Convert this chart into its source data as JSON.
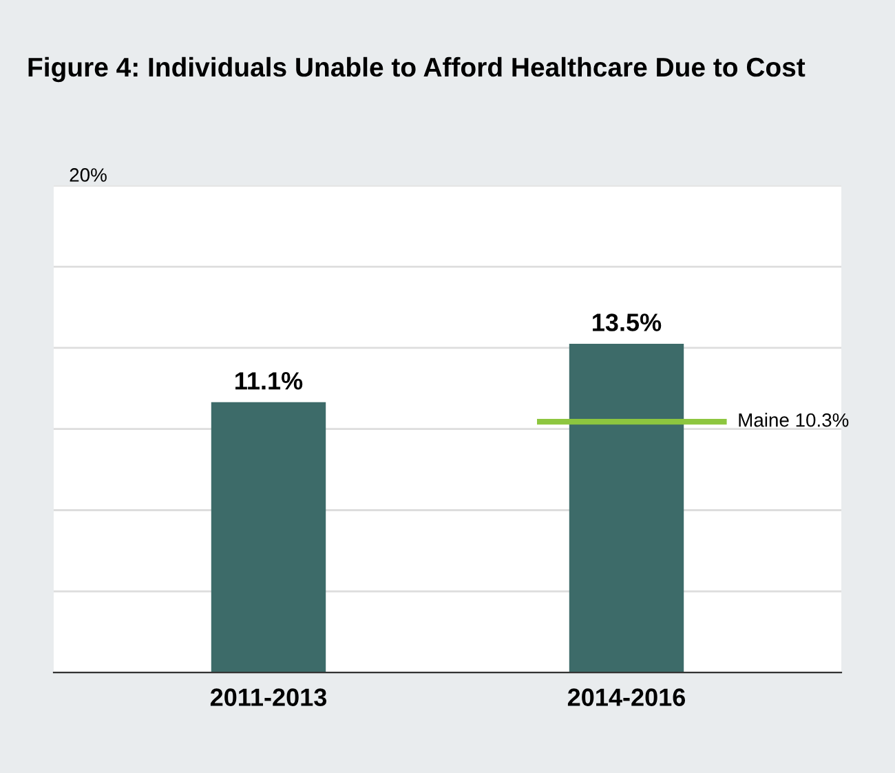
{
  "chart_data": {
    "type": "bar",
    "title": "Figure 4: Individuals Unable to Afford Healthcare Due to Cost",
    "categories": [
      "2011-2013",
      "2014-2016"
    ],
    "values": [
      11.1,
      13.5
    ],
    "value_labels": [
      "11.1%",
      "13.5%"
    ],
    "color": "#3d6b69",
    "ylim": [
      0,
      20
    ],
    "yticks": [
      {
        "value": 0,
        "label": null
      },
      {
        "value": 3.333,
        "label": null
      },
      {
        "value": 6.667,
        "label": null
      },
      {
        "value": 10,
        "label": null
      },
      {
        "value": 13.333,
        "label": null
      },
      {
        "value": 16.667,
        "label": null
      },
      {
        "value": 20,
        "label": "20%"
      }
    ],
    "grid": "y",
    "ref_lines": [
      {
        "axis": "y",
        "value": 10.3,
        "label": "Maine 10.3%",
        "color": "#8dc63f"
      }
    ]
  }
}
